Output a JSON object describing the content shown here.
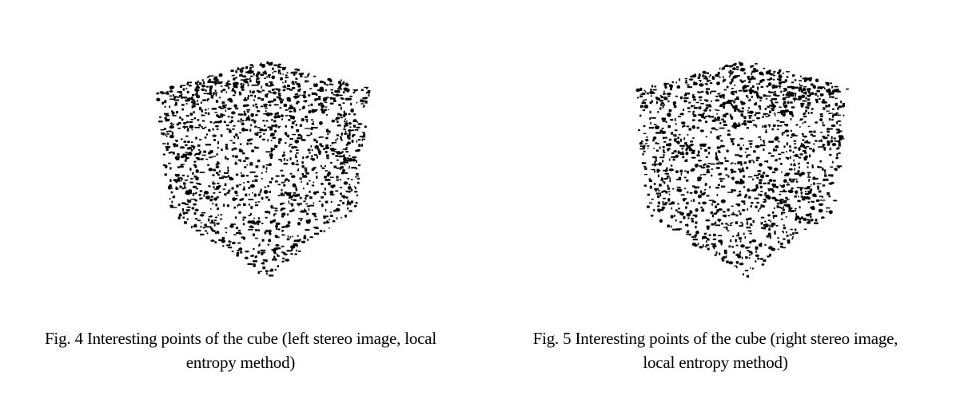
{
  "figures": [
    {
      "caption": {
        "line1": "Fig. 4 Interesting points of the cube (left stereo image, local",
        "line2": "entropy method)"
      },
      "image": {
        "content": "scattered interesting points outlining a cube",
        "view": "left-stereo",
        "seed": 1234
      }
    },
    {
      "caption": {
        "line1": "Fig. 5 Interesting points of the cube (right stereo image,",
        "line2": "local entropy method)"
      },
      "image": {
        "content": "scattered interesting points outlining a cube",
        "view": "right-stereo",
        "seed": 98765
      }
    }
  ],
  "colors": {
    "points": "#000000",
    "background": "#ffffff"
  }
}
